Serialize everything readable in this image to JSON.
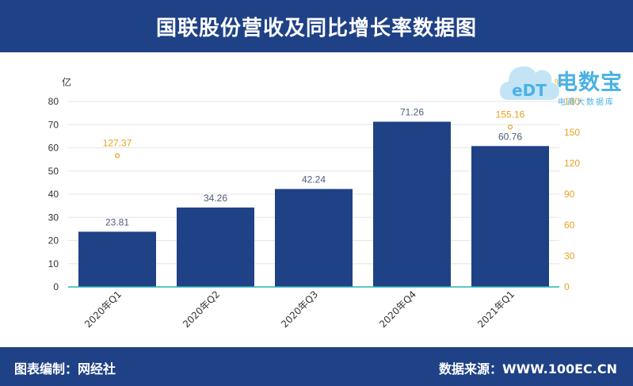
{
  "header": {
    "title": "国联股份营收及同比增长率数据图"
  },
  "footer": {
    "left": "图表编制：网经社",
    "right": "数据来源：WWW.100EC.CN"
  },
  "logo": {
    "name": "电数宝",
    "mark": "eDT",
    "subtitle": "电商大数据库"
  },
  "colors": {
    "header_bg": "#1f4186",
    "bar": "#1f4186",
    "line": "#e8a21c",
    "axis_line": "#27b5b5",
    "bar_label": "#4b5d7a"
  },
  "chart_data": {
    "type": "bar",
    "categories": [
      "2020年Q1",
      "2020年Q2",
      "2020年Q3",
      "2020年Q4",
      "2021年Q1"
    ],
    "series": [
      {
        "name": "",
        "type": "bar",
        "axis": "left",
        "values": [
          23.81,
          34.26,
          42.24,
          71.26,
          60.76
        ]
      },
      {
        "name": "",
        "type": "scatter",
        "axis": "right",
        "points": [
          {
            "category": "2020年Q1",
            "value": 127.37
          },
          {
            "category": "2021年Q1",
            "value": 155.16
          }
        ]
      }
    ],
    "ylabel_left": "亿",
    "ylabel_right": "%",
    "ylim_left": [
      0,
      80
    ],
    "yticks_left": [
      0,
      10,
      20,
      30,
      40,
      50,
      60,
      70,
      80
    ],
    "ylim_right": [
      0,
      180
    ],
    "yticks_right": [
      0,
      30,
      60,
      90,
      120,
      150,
      180
    ],
    "grid": true
  }
}
